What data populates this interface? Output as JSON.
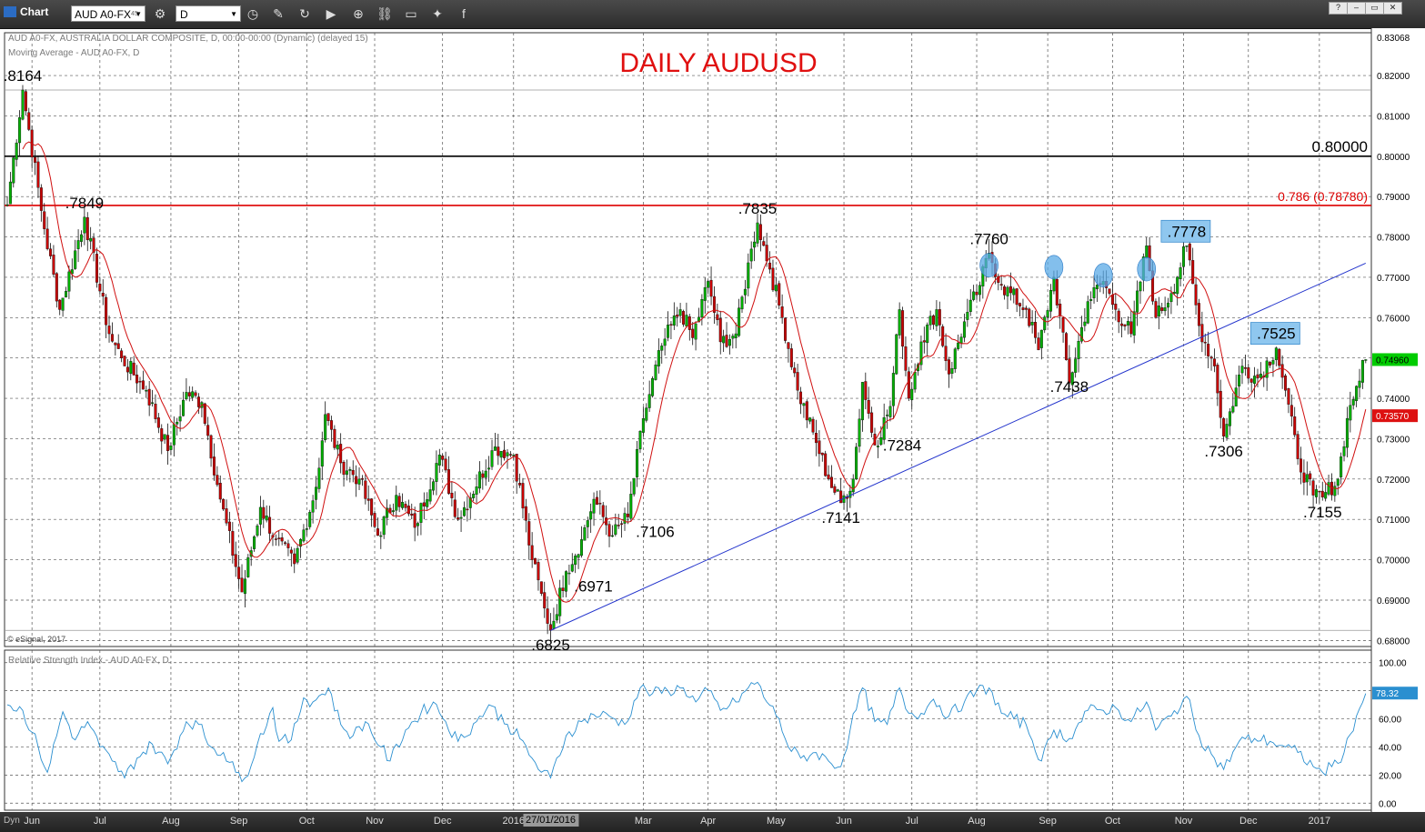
{
  "toolbar": {
    "app_label": "Chart",
    "symbol": "AUD A0-FX",
    "symbol_sup": "45",
    "interval": "D",
    "icons": [
      "clock-icon",
      "pencil-icon",
      "refresh-icon",
      "play-icon",
      "zoom-icon",
      "link-icon",
      "chat-icon",
      "twitter-icon",
      "facebook-icon"
    ]
  },
  "window_controls": [
    "?",
    "–",
    "▭",
    "✕"
  ],
  "bottom": {
    "dyn_label": "Dyn"
  },
  "chart_data": {
    "type": "candlestick",
    "title": "DAILY AUDUSD",
    "header_lines": [
      "AUD A0-FX, AUSTRALIA DOLLAR COMPOSITE, D, 00:00-00:00 (Dynamic) (delayed 15)",
      "Moving Average - AUD A0-FX, D"
    ],
    "copyright": "© eSignal, 2017",
    "ylim": [
      0.6785,
      0.8306
    ],
    "y_ticks": [
      0.82,
      0.81,
      0.8,
      0.79,
      0.78,
      0.77,
      0.76,
      0.75,
      0.74,
      0.73,
      0.72,
      0.71,
      0.7,
      0.69,
      0.68
    ],
    "y_top_label": "0.83068",
    "x_ticks": [
      {
        "i": 8,
        "label": "Jun"
      },
      {
        "i": 30,
        "label": "Jul"
      },
      {
        "i": 53,
        "label": "Aug"
      },
      {
        "i": 75,
        "label": "Sep"
      },
      {
        "i": 97,
        "label": "Oct"
      },
      {
        "i": 119,
        "label": "Nov"
      },
      {
        "i": 141,
        "label": "Dec"
      },
      {
        "i": 164,
        "label": "2016"
      },
      {
        "i": 206,
        "label": "Mar"
      },
      {
        "i": 227,
        "label": "Apr"
      },
      {
        "i": 249,
        "label": "May"
      },
      {
        "i": 271,
        "label": "Jun"
      },
      {
        "i": 293,
        "label": "Jul"
      },
      {
        "i": 314,
        "label": "Aug"
      },
      {
        "i": 337,
        "label": "Sep"
      },
      {
        "i": 358,
        "label": "Oct"
      },
      {
        "i": 381,
        "label": "Nov"
      },
      {
        "i": 402,
        "label": "Dec"
      },
      {
        "i": 425,
        "label": "2017"
      }
    ],
    "cursor_label": {
      "i": 176,
      "label": "27/01/2016"
    },
    "n_bars": 431,
    "price_path": [
      [
        0,
        0.788
      ],
      [
        5,
        0.8164
      ],
      [
        12,
        0.782
      ],
      [
        17,
        0.762
      ],
      [
        25,
        0.7849
      ],
      [
        33,
        0.756
      ],
      [
        37,
        0.75
      ],
      [
        45,
        0.742
      ],
      [
        52,
        0.727
      ],
      [
        58,
        0.7415
      ],
      [
        63,
        0.739
      ],
      [
        69,
        0.715
      ],
      [
        76,
        0.692
      ],
      [
        82,
        0.713
      ],
      [
        87,
        0.705
      ],
      [
        93,
        0.699
      ],
      [
        100,
        0.718
      ],
      [
        103,
        0.736
      ],
      [
        108,
        0.724
      ],
      [
        114,
        0.72
      ],
      [
        120,
        0.706
      ],
      [
        126,
        0.716
      ],
      [
        132,
        0.708
      ],
      [
        140,
        0.726
      ],
      [
        146,
        0.71
      ],
      [
        158,
        0.728
      ],
      [
        164,
        0.726
      ],
      [
        170,
        0.7
      ],
      [
        174,
        0.688
      ],
      [
        176,
        0.6825
      ],
      [
        181,
        0.6971
      ],
      [
        186,
        0.705
      ],
      [
        190,
        0.715
      ],
      [
        196,
        0.706
      ],
      [
        201,
        0.7106
      ],
      [
        206,
        0.735
      ],
      [
        212,
        0.753
      ],
      [
        218,
        0.762
      ],
      [
        222,
        0.755
      ],
      [
        227,
        0.769
      ],
      [
        231,
        0.754
      ],
      [
        236,
        0.756
      ],
      [
        241,
        0.777
      ],
      [
        243,
        0.7835
      ],
      [
        247,
        0.772
      ],
      [
        251,
        0.76
      ],
      [
        256,
        0.742
      ],
      [
        262,
        0.729
      ],
      [
        266,
        0.72
      ],
      [
        270,
        0.7141
      ],
      [
        274,
        0.72
      ],
      [
        277,
        0.744
      ],
      [
        281,
        0.7284
      ],
      [
        286,
        0.738
      ],
      [
        289,
        0.762
      ],
      [
        292,
        0.74
      ],
      [
        296,
        0.754
      ],
      [
        301,
        0.762
      ],
      [
        305,
        0.746
      ],
      [
        310,
        0.759
      ],
      [
        315,
        0.768
      ],
      [
        318,
        0.776
      ],
      [
        322,
        0.768
      ],
      [
        330,
        0.762
      ],
      [
        334,
        0.752
      ],
      [
        339,
        0.77
      ],
      [
        344,
        0.7438
      ],
      [
        350,
        0.764
      ],
      [
        355,
        0.769
      ],
      [
        359,
        0.762
      ],
      [
        364,
        0.756
      ],
      [
        369,
        0.7778
      ],
      [
        372,
        0.76
      ],
      [
        377,
        0.766
      ],
      [
        382,
        0.7778
      ],
      [
        386,
        0.758
      ],
      [
        391,
        0.748
      ],
      [
        394,
        0.7306
      ],
      [
        400,
        0.748
      ],
      [
        405,
        0.745
      ],
      [
        411,
        0.7525
      ],
      [
        414,
        0.742
      ],
      [
        418,
        0.725
      ],
      [
        423,
        0.716
      ],
      [
        426,
        0.7155
      ],
      [
        431,
        0.72
      ],
      [
        434,
        0.735
      ],
      [
        437,
        0.743
      ],
      [
        440,
        0.7496
      ]
    ],
    "moving_average_current": "0.73570",
    "last_price": "0.74960",
    "horizontal_lines": [
      {
        "value": 0.8,
        "label": "0.80000",
        "color": "#000000"
      },
      {
        "value": 0.7878,
        "label": "0.786 (0.78780)",
        "color": "#dd0000"
      },
      {
        "value": 0.8164,
        "color": "#999999"
      },
      {
        "value": 0.6825,
        "color": "#999999"
      }
    ],
    "trendline": {
      "from": {
        "i": 176,
        "y": 0.6825
      },
      "to": {
        "i": 440,
        "y": 0.7735
      },
      "color": "#2233cc"
    },
    "annotations": [
      {
        "i": 5,
        "y": 0.8164,
        "text": ".8164"
      },
      {
        "i": 25,
        "y": 0.7849,
        "text": ".7849"
      },
      {
        "i": 243,
        "y": 0.7835,
        "text": ".7835"
      },
      {
        "i": 318,
        "y": 0.776,
        "text": ".7760"
      },
      {
        "i": 382,
        "y": 0.7778,
        "text": ".7778",
        "boxed": true
      },
      {
        "i": 411,
        "y": 0.7525,
        "text": ".7525",
        "boxed": true
      },
      {
        "i": 344,
        "y": 0.7438,
        "text": ".7438"
      },
      {
        "i": 281,
        "y": 0.7284,
        "text": ".7284"
      },
      {
        "i": 394,
        "y": 0.7306,
        "text": ".7306"
      },
      {
        "i": 270,
        "y": 0.7141,
        "text": ".7141"
      },
      {
        "i": 201,
        "y": 0.7106,
        "text": ".7106"
      },
      {
        "i": 181,
        "y": 0.6971,
        "text": ".6971"
      },
      {
        "i": 176,
        "y": 0.6825,
        "text": ".6825"
      },
      {
        "i": 426,
        "y": 0.7155,
        "text": ".7155"
      }
    ],
    "highlight_markers": [
      {
        "i": 318,
        "y": 0.773
      },
      {
        "i": 339,
        "y": 0.7725
      },
      {
        "i": 355,
        "y": 0.7705
      },
      {
        "i": 369,
        "y": 0.772
      }
    ],
    "rsi": {
      "header": "Relative Strength Index - AUD A0-FX, D",
      "ylim": [
        -5,
        105
      ],
      "y_ticks": [
        100,
        80,
        60,
        40,
        20,
        0
      ],
      "current": "78.32",
      "path": [
        [
          0,
          70
        ],
        [
          5,
          66
        ],
        [
          10,
          40
        ],
        [
          13,
          22
        ],
        [
          18,
          65
        ],
        [
          22,
          45
        ],
        [
          26,
          58
        ],
        [
          30,
          40
        ],
        [
          34,
          30
        ],
        [
          38,
          18
        ],
        [
          42,
          32
        ],
        [
          47,
          42
        ],
        [
          52,
          28
        ],
        [
          58,
          58
        ],
        [
          62,
          56
        ],
        [
          66,
          40
        ],
        [
          70,
          36
        ],
        [
          74,
          22
        ],
        [
          77,
          18
        ],
        [
          81,
          42
        ],
        [
          86,
          68
        ],
        [
          88,
          44
        ],
        [
          92,
          45
        ],
        [
          96,
          75
        ],
        [
          99,
          72
        ],
        [
          104,
          82
        ],
        [
          108,
          56
        ],
        [
          112,
          48
        ],
        [
          116,
          58
        ],
        [
          121,
          40
        ],
        [
          124,
          30
        ],
        [
          129,
          52
        ],
        [
          134,
          64
        ],
        [
          138,
          72
        ],
        [
          142,
          58
        ],
        [
          146,
          44
        ],
        [
          152,
          58
        ],
        [
          156,
          70
        ],
        [
          162,
          56
        ],
        [
          166,
          46
        ],
        [
          170,
          32
        ],
        [
          173,
          22
        ],
        [
          176,
          18
        ],
        [
          181,
          48
        ],
        [
          186,
          58
        ],
        [
          190,
          63
        ],
        [
          195,
          62
        ],
        [
          200,
          56
        ],
        [
          205,
          82
        ],
        [
          209,
          78
        ],
        [
          214,
          80
        ],
        [
          219,
          82
        ],
        [
          223,
          72
        ],
        [
          227,
          80
        ],
        [
          231,
          66
        ],
        [
          236,
          72
        ],
        [
          240,
          82
        ],
        [
          243,
          86
        ],
        [
          246,
          72
        ],
        [
          250,
          60
        ],
        [
          253,
          40
        ],
        [
          257,
          32
        ],
        [
          262,
          36
        ],
        [
          266,
          30
        ],
        [
          270,
          26
        ],
        [
          273,
          52
        ],
        [
          277,
          82
        ],
        [
          281,
          58
        ],
        [
          285,
          56
        ],
        [
          289,
          82
        ],
        [
          292,
          64
        ],
        [
          296,
          64
        ],
        [
          300,
          74
        ],
        [
          305,
          62
        ],
        [
          310,
          72
        ],
        [
          314,
          80
        ],
        [
          318,
          82
        ],
        [
          322,
          64
        ],
        [
          326,
          60
        ],
        [
          330,
          56
        ],
        [
          335,
          30
        ],
        [
          339,
          52
        ],
        [
          344,
          46
        ],
        [
          350,
          66
        ],
        [
          355,
          66
        ],
        [
          359,
          68
        ],
        [
          364,
          58
        ],
        [
          369,
          72
        ],
        [
          372,
          52
        ],
        [
          377,
          62
        ],
        [
          382,
          76
        ],
        [
          386,
          48
        ],
        [
          391,
          32
        ],
        [
          394,
          24
        ],
        [
          399,
          44
        ],
        [
          404,
          46
        ],
        [
          409,
          44
        ],
        [
          414,
          40
        ],
        [
          418,
          36
        ],
        [
          423,
          26
        ],
        [
          426,
          22
        ],
        [
          429,
          26
        ],
        [
          433,
          36
        ],
        [
          437,
          62
        ],
        [
          440,
          78
        ]
      ]
    }
  }
}
